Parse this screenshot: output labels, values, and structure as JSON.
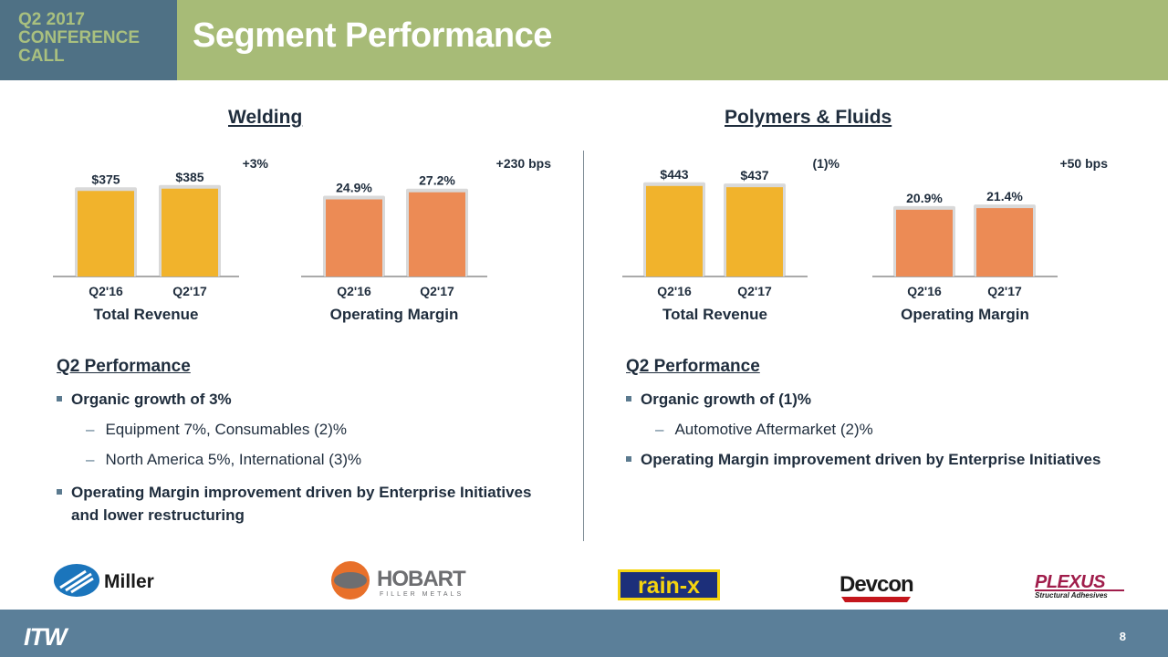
{
  "header": {
    "conference_line1": "Q2 2017",
    "conference_line2": "CONFERENCE",
    "conference_line3": "CALL",
    "title": "Segment Performance"
  },
  "colors": {
    "header_left": "#4f7185",
    "header_right": "#a7bb77",
    "revenue_bar": "#f1b32c",
    "margin_bar": "#ec8b55",
    "footer": "#5b7f99"
  },
  "sections": {
    "welding": {
      "title": "Welding",
      "perf_heading": "Q2 Performance",
      "bullet1": "Organic growth of 3%",
      "sub1": "Equipment 7%, Consumables (2)%",
      "sub2": "North America 5%, International (3)%",
      "bullet2_line1": "Operating Margin improvement driven by Enterprise Initiatives",
      "bullet2_line2": "and lower restructuring"
    },
    "polymers": {
      "title": "Polymers & Fluids",
      "perf_heading": "Q2 Performance",
      "bullet1": "Organic growth of (1)%",
      "sub1": "Automotive Aftermarket (2)%",
      "bullet2_line1": "Operating Margin improvement driven by Enterprise Initiatives"
    }
  },
  "chart_data": [
    {
      "type": "bar",
      "segment": "Welding",
      "categories": [
        "Q2'16",
        "Q2'17"
      ],
      "values": [
        375,
        385
      ],
      "data_labels": [
        "$375",
        "$385"
      ],
      "change_label": "+3%",
      "xlabel": "Total Revenue",
      "color": "#f1b32c"
    },
    {
      "type": "bar",
      "segment": "Welding",
      "categories": [
        "Q2'16",
        "Q2'17"
      ],
      "values": [
        24.9,
        27.2
      ],
      "data_labels": [
        "24.9%",
        "27.2%"
      ],
      "change_label": "+230 bps",
      "xlabel": "Operating Margin",
      "color": "#ec8b55"
    },
    {
      "type": "bar",
      "segment": "Polymers & Fluids",
      "categories": [
        "Q2'16",
        "Q2'17"
      ],
      "values": [
        443,
        437
      ],
      "data_labels": [
        "$443",
        "$437"
      ],
      "change_label": "(1)%",
      "xlabel": "Total Revenue",
      "color": "#f1b32c"
    },
    {
      "type": "bar",
      "segment": "Polymers & Fluids",
      "categories": [
        "Q2'16",
        "Q2'17"
      ],
      "values": [
        20.9,
        21.4
      ],
      "data_labels": [
        "20.9%",
        "21.4%"
      ],
      "change_label": "+50 bps",
      "xlabel": "Operating Margin",
      "color": "#ec8b55"
    }
  ],
  "logos": {
    "miller": "Miller",
    "hobart": "HOBART",
    "hobart_sub": "FILLER METALS",
    "rainx": "rain-x",
    "devcon": "Devcon",
    "plexus": "PLEXUS",
    "plexus_sub": "Structural Adhesives"
  },
  "footer": {
    "company": "ITW",
    "page_number": "8"
  }
}
